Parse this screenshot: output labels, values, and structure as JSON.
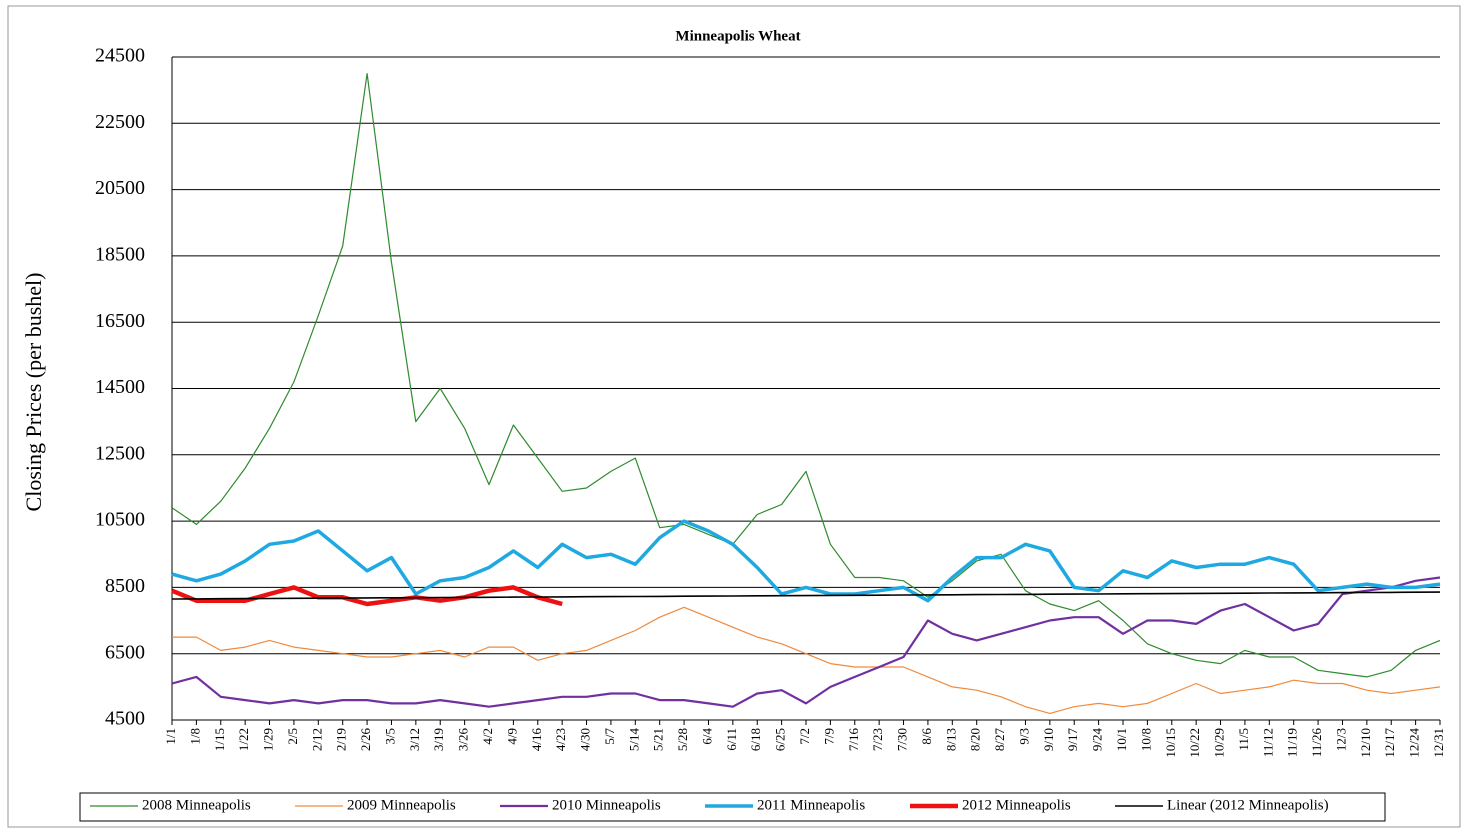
{
  "chart_data": {
    "type": "line",
    "title": "Minneapolis  Wheat",
    "y_label": "Closing Prices (per bushel)",
    "categories": [
      "1/1",
      "1/8",
      "1/15",
      "1/22",
      "1/29",
      "2/5",
      "2/12",
      "2/19",
      "2/26",
      "3/5",
      "3/12",
      "3/19",
      "3/26",
      "4/2",
      "4/9",
      "4/16",
      "4/23",
      "4/30",
      "5/7",
      "5/14",
      "5/21",
      "5/28",
      "6/4",
      "6/11",
      "6/18",
      "6/25",
      "7/2",
      "7/9",
      "7/16",
      "7/23",
      "7/30",
      "8/6",
      "8/13",
      "8/20",
      "8/27",
      "9/3",
      "9/10",
      "9/17",
      "9/24",
      "10/1",
      "10/8",
      "10/15",
      "10/22",
      "10/29",
      "11/5",
      "11/12",
      "11/19",
      "11/26",
      "12/3",
      "12/10",
      "12/17",
      "12/24",
      "12/31"
    ],
    "series": [
      {
        "name": "2008 Minneapolis",
        "color": "#2e8b2e",
        "line_width": 1.2,
        "values": [
          10900,
          10400,
          11100,
          12100,
          13300,
          14700,
          16700,
          18800,
          24000,
          18300,
          13500,
          14500,
          13300,
          11600,
          13400,
          12400,
          11400,
          11500,
          12000,
          12400,
          10300,
          10400,
          10100,
          9800,
          10700,
          11000,
          12000,
          9800,
          8800,
          8800,
          8700,
          8200,
          8700,
          9300,
          9500,
          8400,
          8000,
          7800,
          8100,
          7500,
          6800,
          6500,
          6300,
          6200,
          6600,
          6400,
          6400,
          6000,
          5900,
          5800,
          6000,
          6600,
          6900
        ]
      },
      {
        "name": "2009 Minneapolis",
        "color": "#f08a3c",
        "line_width": 1.2,
        "values": [
          7000,
          7000,
          6600,
          6700,
          6900,
          6700,
          6600,
          6500,
          6400,
          6400,
          6500,
          6600,
          6400,
          6700,
          6700,
          6300,
          6500,
          6600,
          6900,
          7200,
          7600,
          7900,
          7600,
          7300,
          7000,
          6800,
          6500,
          6200,
          6100,
          6100,
          6100,
          5800,
          5500,
          5400,
          5200,
          4900,
          4700,
          4900,
          5000,
          4900,
          5000,
          5300,
          5600,
          5300,
          5400,
          5500,
          5700,
          5600,
          5600,
          5400,
          5300,
          5400,
          5500
        ]
      },
      {
        "name": "2010 Minneapolis",
        "color": "#7030a0",
        "line_width": 2.2,
        "values": [
          5600,
          5800,
          5200,
          5100,
          5000,
          5100,
          5000,
          5100,
          5100,
          5000,
          5000,
          5100,
          5000,
          4900,
          5000,
          5100,
          5200,
          5200,
          5300,
          5300,
          5100,
          5100,
          5000,
          4900,
          5300,
          5400,
          5000,
          5500,
          5800,
          6100,
          6400,
          7500,
          7100,
          6900,
          7100,
          7300,
          7500,
          7600,
          7600,
          7100,
          7500,
          7500,
          7400,
          7800,
          8000,
          7600,
          7200,
          7400,
          8300,
          8400,
          8500,
          8700,
          8800
        ]
      },
      {
        "name": "2011 Minneapolis",
        "color": "#1fa9e1",
        "line_width": 3.5,
        "values": [
          8900,
          8700,
          8900,
          9300,
          9800,
          9900,
          10200,
          9600,
          9000,
          9400,
          8300,
          8700,
          8800,
          9100,
          9600,
          9100,
          9800,
          9400,
          9500,
          9200,
          10000,
          10500,
          10200,
          9800,
          9100,
          8300,
          8500,
          8300,
          8300,
          8400,
          8500,
          8100,
          8800,
          9400,
          9400,
          9800,
          9600,
          8500,
          8400,
          9000,
          8800,
          9300,
          9100,
          9200,
          9200,
          9400,
          9200,
          8400,
          8500,
          8600,
          8500,
          8500,
          8600
        ]
      },
      {
        "name": "2012 Minneapolis",
        "color": "#ee1111",
        "line_width": 4.5,
        "values": [
          8400,
          8100,
          8100,
          8100,
          8300,
          8500,
          8200,
          8200,
          8000,
          8100,
          8200,
          8100,
          8200,
          8400,
          8500,
          8200,
          8000,
          null,
          null,
          null,
          null,
          null,
          null,
          null,
          null,
          null,
          null,
          null,
          null,
          null,
          null,
          null,
          null,
          null,
          null,
          null,
          null,
          null,
          null,
          null,
          null,
          null,
          null,
          null,
          null,
          null,
          null,
          null,
          null,
          null,
          null,
          null,
          null
        ]
      },
      {
        "name": "Linear (2012 Minneapolis)",
        "color": "#000000",
        "line_width": 1.6,
        "values": [
          8150,
          8154,
          8158,
          8162,
          8166,
          8170,
          8174,
          8178,
          8182,
          8186,
          8190,
          8194,
          8198,
          8202,
          8206,
          8210,
          8214,
          8218,
          8222,
          8226,
          8230,
          8234,
          8238,
          8242,
          8246,
          8250,
          8254,
          8258,
          8262,
          8266,
          8270,
          8274,
          8278,
          8282,
          8286,
          8290,
          8294,
          8298,
          8302,
          8306,
          8310,
          8314,
          8318,
          8322,
          8326,
          8330,
          8334,
          8338,
          8342,
          8346,
          8350,
          8354,
          8358
        ]
      }
    ],
    "ylim": [
      4500,
      24500
    ],
    "yticks": [
      4500,
      6500,
      8500,
      10500,
      12500,
      14500,
      16500,
      18500,
      20500,
      22500,
      24500
    ],
    "grid": true,
    "legend": "bottom"
  }
}
